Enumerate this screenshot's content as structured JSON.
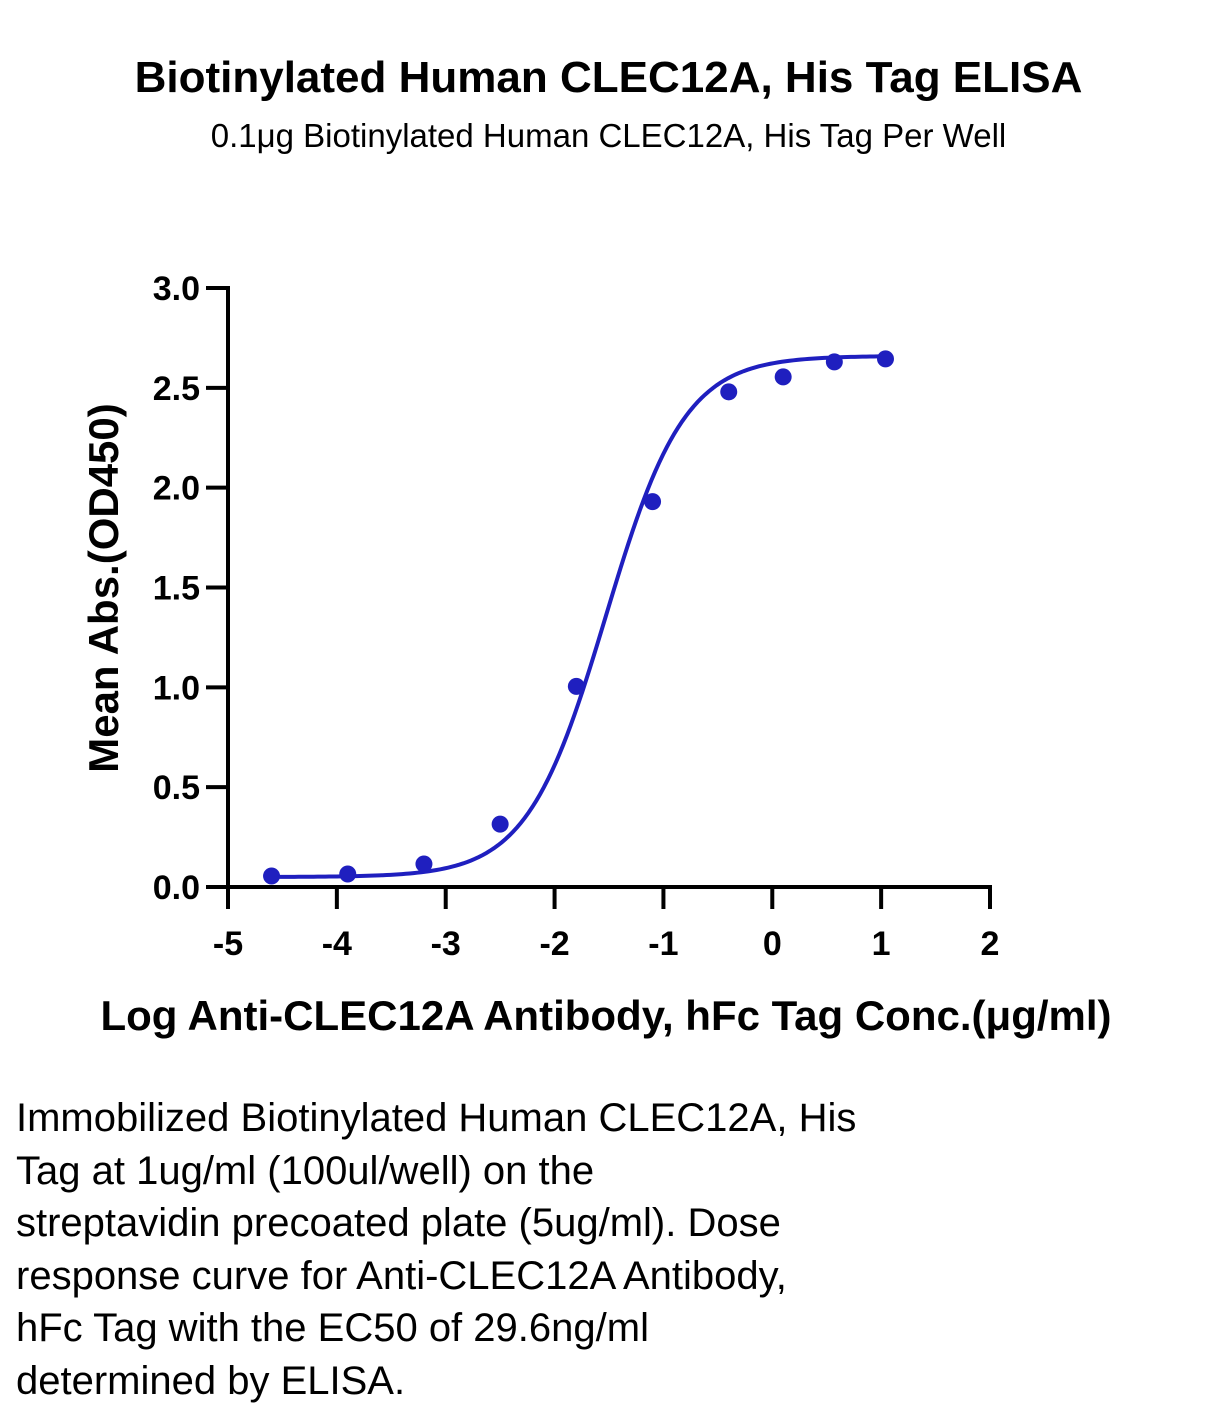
{
  "chart_data": {
    "type": "scatter",
    "title": "Biotinylated Human CLEC12A, His Tag ELISA",
    "subtitle": "0.1μg Biotinylated Human CLEC12A, His Tag Per Well",
    "xlabel": "Log Anti-CLEC12A Antibody, hFc Tag Conc.(μg/ml)",
    "ylabel": "Mean Abs.(OD450)",
    "xlim": [
      -5,
      2
    ],
    "ylim": [
      0,
      3.0
    ],
    "x_ticks": [
      "-5",
      "-4",
      "-3",
      "-2",
      "-1",
      "0",
      "1",
      "2"
    ],
    "y_ticks": [
      "0.0",
      "0.5",
      "1.0",
      "1.5",
      "2.0",
      "2.5",
      "3.0"
    ],
    "grid": false,
    "series": [
      {
        "color": "#1f1fbf",
        "x": [
          -4.6,
          -3.9,
          -3.2,
          -2.5,
          -1.8,
          -1.1,
          -0.4,
          0.1,
          0.57,
          1.04
        ],
        "y": [
          0.055,
          0.065,
          0.115,
          0.315,
          1.005,
          1.93,
          2.48,
          2.555,
          2.63,
          2.645
        ]
      }
    ],
    "fit_curve": {
      "model": "4PL",
      "bottom": 0.05,
      "top": 2.66,
      "log_ec50": -1.53,
      "hill": 1.2,
      "color": "#1f1fbf"
    }
  },
  "caption": "Immobilized Biotinylated Human CLEC12A, His\nTag at 1ug/ml (100ul/well) on the\nstreptavidin precoated plate (5ug/ml). Dose\nresponse curve for Anti-CLEC12A Antibody,\nhFc Tag with the EC50 of 29.6ng/ml\ndetermined by ELISA."
}
